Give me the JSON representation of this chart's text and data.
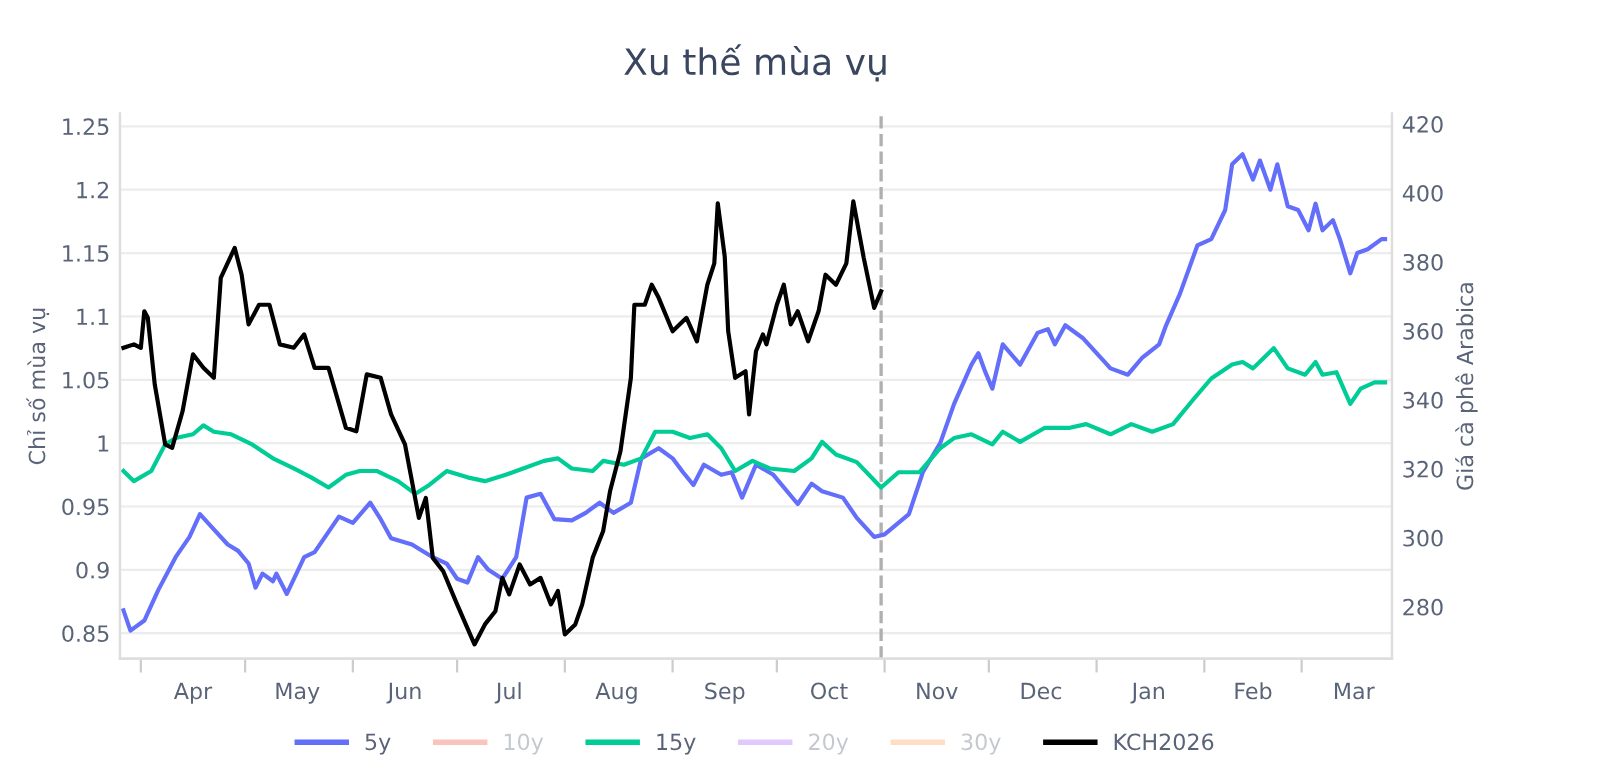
{
  "chart_data": {
    "type": "line",
    "title": "Xu thế mùa vụ",
    "ylabel": "Chỉ số mùa vụ",
    "y2label": "Giá cà phê Arabica",
    "xlim": [
      "2025-03-26",
      "2026-03-27"
    ],
    "xticks": [
      {
        "value": "2025-04-01",
        "label": null
      },
      {
        "value": "2025-05-01",
        "label": null
      },
      {
        "value": "2025-06-01",
        "label": null
      },
      {
        "value": "2025-07-01",
        "label": null
      },
      {
        "value": "2025-08-01",
        "label": null
      },
      {
        "value": "2025-09-01",
        "label": null
      },
      {
        "value": "2025-10-01",
        "label": null
      },
      {
        "value": "2025-11-01",
        "label": null
      },
      {
        "value": "2025-12-01",
        "label": null
      },
      {
        "value": "2026-01-01",
        "label": null
      },
      {
        "value": "2026-02-01",
        "label": null
      },
      {
        "value": "2026-03-01",
        "label": null
      },
      {
        "value": "2025-04-16",
        "label": "Apr"
      },
      {
        "value": "2025-05-16",
        "label": "May"
      },
      {
        "value": "2025-06-16",
        "label": "Jun"
      },
      {
        "value": "2025-07-16",
        "label": "Jul"
      },
      {
        "value": "2025-08-16",
        "label": "Aug"
      },
      {
        "value": "2025-09-16",
        "label": "Sep"
      },
      {
        "value": "2025-10-16",
        "label": "Oct"
      },
      {
        "value": "2025-11-16",
        "label": "Nov"
      },
      {
        "value": "2025-12-16",
        "label": "Dec"
      },
      {
        "value": "2026-01-16",
        "label": "Jan"
      },
      {
        "value": "2026-02-15",
        "label": "Feb"
      },
      {
        "value": "2026-03-16",
        "label": "Mar"
      }
    ],
    "ylim": [
      0.83,
      1.26
    ],
    "yticks": [
      0.85,
      0.9,
      0.95,
      1,
      1.05,
      1.1,
      1.15,
      1.2,
      1.25
    ],
    "y2lim": [
      265,
      423
    ],
    "y2ticks": [
      280,
      300,
      320,
      340,
      360,
      380,
      400,
      420
    ],
    "grid": "y",
    "legend": "bottom",
    "line_style": "solid",
    "marker": "none",
    "ref_lines": [
      {
        "axis": "x",
        "value": "2025-10-31",
        "color": "#b0b0b0",
        "line_style": "dashed"
      }
    ],
    "series": [
      {
        "name": "5y",
        "color": "#636efa",
        "x": [
          "2025-03-27",
          "2025-03-29",
          "2025-04-02",
          "2025-04-06",
          "2025-04-11",
          "2025-04-15",
          "2025-04-18",
          "2025-04-22",
          "2025-04-26",
          "2025-04-29",
          "2025-05-02",
          "2025-05-04",
          "2025-05-06",
          "2025-05-09",
          "2025-05-10",
          "2025-05-13",
          "2025-05-18",
          "2025-05-21",
          "2025-05-25",
          "2025-05-28",
          "2025-06-01",
          "2025-06-06",
          "2025-06-09",
          "2025-06-12",
          "2025-06-18",
          "2025-06-24",
          "2025-06-28",
          "2025-07-01",
          "2025-07-04",
          "2025-07-07",
          "2025-07-10",
          "2025-07-14",
          "2025-07-18",
          "2025-07-21",
          "2025-07-25",
          "2025-07-29",
          "2025-08-03",
          "2025-08-07",
          "2025-08-11",
          "2025-08-15",
          "2025-08-20",
          "2025-08-23",
          "2025-08-28",
          "2025-09-01",
          "2025-09-04",
          "2025-09-07",
          "2025-09-10",
          "2025-09-15",
          "2025-09-18",
          "2025-09-21",
          "2025-09-25",
          "2025-09-30",
          "2025-10-07",
          "2025-10-11",
          "2025-10-14",
          "2025-10-20",
          "2025-10-24",
          "2025-10-29",
          "2025-11-01",
          "2025-11-08",
          "2025-11-12",
          "2025-11-17",
          "2025-11-21",
          "2025-11-26",
          "2025-11-28",
          "2025-11-30",
          "2025-12-02",
          "2025-12-05",
          "2025-12-10",
          "2025-12-15",
          "2025-12-18",
          "2025-12-20",
          "2025-12-23",
          "2025-12-28",
          "2026-01-01",
          "2026-01-05",
          "2026-01-10",
          "2026-01-14",
          "2026-01-19",
          "2026-01-21",
          "2026-01-25",
          "2026-01-30",
          "2026-02-03",
          "2026-02-07",
          "2026-02-09",
          "2026-02-12",
          "2026-02-15",
          "2026-02-17",
          "2026-02-20",
          "2026-02-22",
          "2026-02-25",
          "2026-02-28",
          "2026-03-03",
          "2026-03-05",
          "2026-03-07",
          "2026-03-10",
          "2026-03-12",
          "2026-03-15",
          "2026-03-17",
          "2026-03-20",
          "2026-03-24",
          "2026-03-25"
        ],
        "values": [
          0.868,
          0.852,
          0.86,
          0.884,
          0.91,
          0.926,
          0.944,
          0.932,
          0.92,
          0.915,
          0.905,
          0.886,
          0.897,
          0.891,
          0.897,
          0.881,
          0.91,
          0.914,
          0.93,
          0.942,
          0.937,
          0.953,
          0.94,
          0.925,
          0.92,
          0.91,
          0.905,
          0.893,
          0.89,
          0.91,
          0.9,
          0.893,
          0.91,
          0.957,
          0.96,
          0.94,
          0.939,
          0.945,
          0.953,
          0.945,
          0.953,
          0.988,
          0.996,
          0.988,
          0.977,
          0.967,
          0.983,
          0.975,
          0.977,
          0.957,
          0.983,
          0.975,
          0.952,
          0.968,
          0.962,
          0.957,
          0.941,
          0.926,
          0.928,
          0.944,
          0.977,
          1.0,
          1.031,
          1.062,
          1.071,
          1.056,
          1.043,
          1.078,
          1.062,
          1.087,
          1.09,
          1.078,
          1.093,
          1.083,
          1.071,
          1.059,
          1.054,
          1.067,
          1.078,
          1.093,
          1.118,
          1.156,
          1.161,
          1.184,
          1.22,
          1.228,
          1.208,
          1.223,
          1.2,
          1.22,
          1.187,
          1.184,
          1.168,
          1.189,
          1.168,
          1.176,
          1.161,
          1.134,
          1.15,
          1.153,
          1.161,
          1.161
        ]
      },
      {
        "name": "10y",
        "color": "#ef553b"
      },
      {
        "name": "15y",
        "color": "#00cc96",
        "x": [
          "2025-03-27",
          "2025-03-30",
          "2025-04-04",
          "2025-04-08",
          "2025-04-11",
          "2025-04-16",
          "2025-04-19",
          "2025-04-22",
          "2025-04-27",
          "2025-05-03",
          "2025-05-09",
          "2025-05-15",
          "2025-05-20",
          "2025-05-25",
          "2025-05-30",
          "2025-06-03",
          "2025-06-08",
          "2025-06-14",
          "2025-06-19",
          "2025-06-23",
          "2025-06-28",
          "2025-07-04",
          "2025-07-09",
          "2025-07-15",
          "2025-07-20",
          "2025-07-26",
          "2025-07-30",
          "2025-08-03",
          "2025-08-09",
          "2025-08-12",
          "2025-08-18",
          "2025-08-23",
          "2025-08-27",
          "2025-09-01",
          "2025-09-06",
          "2025-09-11",
          "2025-09-15",
          "2025-09-19",
          "2025-09-24",
          "2025-09-29",
          "2025-10-06",
          "2025-10-11",
          "2025-10-14",
          "2025-10-18",
          "2025-10-24",
          "2025-10-31",
          "2025-11-05",
          "2025-11-11",
          "2025-11-17",
          "2025-11-21",
          "2025-11-26",
          "2025-12-02",
          "2025-12-05",
          "2025-12-10",
          "2025-12-17",
          "2025-12-24",
          "2025-12-29",
          "2026-01-05",
          "2026-01-11",
          "2026-01-17",
          "2026-01-23",
          "2026-01-29",
          "2026-02-03",
          "2026-02-09",
          "2026-02-12",
          "2026-02-15",
          "2026-02-18",
          "2026-02-21",
          "2026-02-25",
          "2026-03-02",
          "2026-03-05",
          "2026-03-07",
          "2026-03-11",
          "2026-03-15",
          "2026-03-18",
          "2026-03-22",
          "2026-03-25"
        ],
        "values": [
          0.978,
          0.97,
          0.978,
          0.999,
          1.004,
          1.007,
          1.014,
          1.009,
          1.007,
          0.999,
          0.988,
          0.98,
          0.973,
          0.965,
          0.975,
          0.978,
          0.978,
          0.97,
          0.96,
          0.967,
          0.978,
          0.973,
          0.97,
          0.975,
          0.98,
          0.986,
          0.988,
          0.98,
          0.978,
          0.986,
          0.983,
          0.988,
          1.009,
          1.009,
          1.004,
          1.007,
          0.996,
          0.978,
          0.986,
          0.98,
          0.978,
          0.988,
          1.001,
          0.991,
          0.985,
          0.965,
          0.977,
          0.977,
          0.996,
          1.004,
          1.007,
          0.999,
          1.009,
          1.001,
          1.012,
          1.012,
          1.015,
          1.007,
          1.015,
          1.009,
          1.015,
          1.035,
          1.051,
          1.062,
          1.064,
          1.059,
          1.067,
          1.075,
          1.059,
          1.054,
          1.064,
          1.054,
          1.056,
          1.031,
          1.043,
          1.048,
          1.048
        ]
      },
      {
        "name": "20y",
        "color": "#ab63fa"
      },
      {
        "name": "30y",
        "color": "#ffa15a"
      },
      {
        "name": "KCH2026",
        "color": "#000000",
        "axis": "y2",
        "x": [
          "2025-03-27",
          "2025-03-30",
          "2025-04-01",
          "2025-04-02",
          "2025-04-03",
          "2025-04-05",
          "2025-04-08",
          "2025-04-10",
          "2025-04-13",
          "2025-04-16",
          "2025-04-19",
          "2025-04-22",
          "2025-04-24",
          "2025-04-28",
          "2025-04-30",
          "2025-05-02",
          "2025-05-05",
          "2025-05-08",
          "2025-05-11",
          "2025-05-15",
          "2025-05-18",
          "2025-05-21",
          "2025-05-25",
          "2025-05-30",
          "2025-06-02",
          "2025-06-05",
          "2025-06-09",
          "2025-06-12",
          "2025-06-16",
          "2025-06-20",
          "2025-06-22",
          "2025-06-24",
          "2025-06-27",
          "2025-07-01",
          "2025-07-06",
          "2025-07-09",
          "2025-07-12",
          "2025-07-14",
          "2025-07-16",
          "2025-07-19",
          "2025-07-22",
          "2025-07-25",
          "2025-07-28",
          "2025-07-30",
          "2025-08-01",
          "2025-08-04",
          "2025-08-06",
          "2025-08-09",
          "2025-08-12",
          "2025-08-14",
          "2025-08-17",
          "2025-08-20",
          "2025-08-21",
          "2025-08-24",
          "2025-08-26",
          "2025-08-28",
          "2025-09-01",
          "2025-09-05",
          "2025-09-08",
          "2025-09-11",
          "2025-09-13",
          "2025-09-14",
          "2025-09-16",
          "2025-09-17",
          "2025-09-19",
          "2025-09-22",
          "2025-09-23",
          "2025-09-25",
          "2025-09-27",
          "2025-09-28",
          "2025-10-01",
          "2025-10-03",
          "2025-10-05",
          "2025-10-07",
          "2025-10-09",
          "2025-10-10",
          "2025-10-13",
          "2025-10-15",
          "2025-10-18",
          "2025-10-21",
          "2025-10-23",
          "2025-10-26",
          "2025-10-29",
          "2025-10-31"
        ],
        "values": [
          355.1,
          356.1,
          355.1,
          365.7,
          363.8,
          344.5,
          327.1,
          326.1,
          336.7,
          353.2,
          349.3,
          346.4,
          375.4,
          384.1,
          376.3,
          361.9,
          367.6,
          367.6,
          356.1,
          355.1,
          359,
          349.3,
          349.3,
          331.9,
          330.9,
          347.4,
          346.4,
          335.8,
          327.1,
          305.8,
          311.6,
          294.2,
          290.3,
          280.7,
          269.1,
          274.9,
          278.7,
          288.4,
          283.6,
          292.3,
          286.5,
          288.4,
          280.7,
          284.6,
          272,
          274.9,
          280.7,
          294.2,
          301.9,
          313.5,
          325.1,
          346.4,
          367.6,
          367.6,
          373.4,
          369.6,
          359.9,
          363.8,
          357,
          373.4,
          379.6,
          397,
          381.6,
          359.9,
          346.4,
          348.3,
          335.8,
          354.1,
          359,
          356.1,
          367.6,
          373.4,
          361.9,
          365.7,
          359.9,
          357,
          365.7,
          376.3,
          373.4,
          379.6,
          397.6,
          381.2,
          366.7,
          371.5
        ]
      }
    ]
  }
}
